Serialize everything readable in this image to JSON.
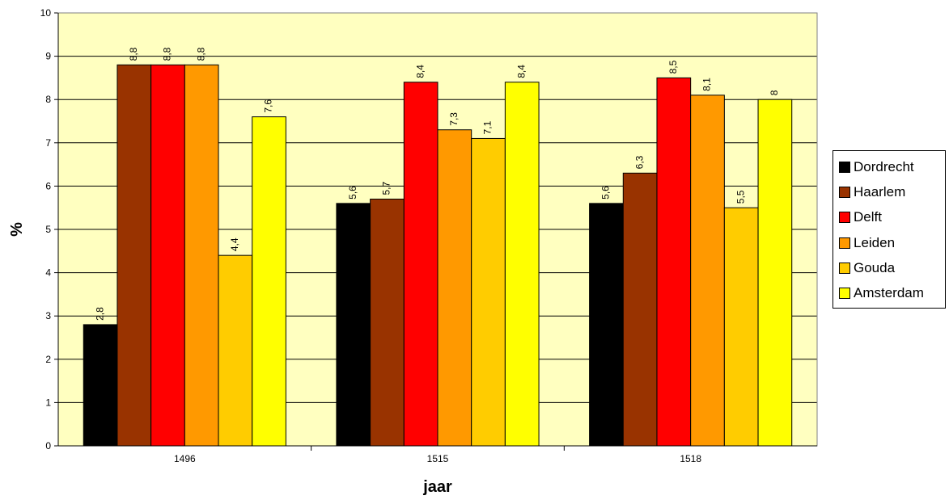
{
  "chart_data": {
    "type": "bar",
    "title": "",
    "xlabel": "jaar",
    "ylabel": "%",
    "categories": [
      "1496",
      "1515",
      "1518"
    ],
    "ylim": [
      0,
      10
    ],
    "yticks": [
      0,
      1,
      2,
      3,
      4,
      5,
      6,
      7,
      8,
      9,
      10
    ],
    "grid": true,
    "legend_position": "right",
    "plot_background": "#FFFFC0",
    "series": [
      {
        "name": "Dordrecht",
        "color": "#000000",
        "values": [
          2.8,
          5.6,
          5.6
        ],
        "labels": [
          "2,8",
          "5,6",
          "5,6"
        ]
      },
      {
        "name": "Haarlem",
        "color": "#993300",
        "values": [
          8.8,
          5.7,
          6.3
        ],
        "labels": [
          "8,8",
          "5,7",
          "6,3"
        ]
      },
      {
        "name": "Delft",
        "color": "#FF0000",
        "values": [
          8.8,
          8.4,
          8.5
        ],
        "labels": [
          "8,8",
          "8,4",
          "8,5"
        ]
      },
      {
        "name": "Leiden",
        "color": "#FF9900",
        "values": [
          8.8,
          7.3,
          8.1
        ],
        "labels": [
          "8,8",
          "7,3",
          "8,1"
        ]
      },
      {
        "name": "Gouda",
        "color": "#FFCC00",
        "values": [
          4.4,
          7.1,
          5.5
        ],
        "labels": [
          "4,4",
          "7,1",
          "5,5"
        ]
      },
      {
        "name": "Amsterdam",
        "color": "#FFFF00",
        "values": [
          7.6,
          8.4,
          8.0
        ],
        "labels": [
          "7,6",
          "8,4",
          "8"
        ]
      }
    ]
  }
}
